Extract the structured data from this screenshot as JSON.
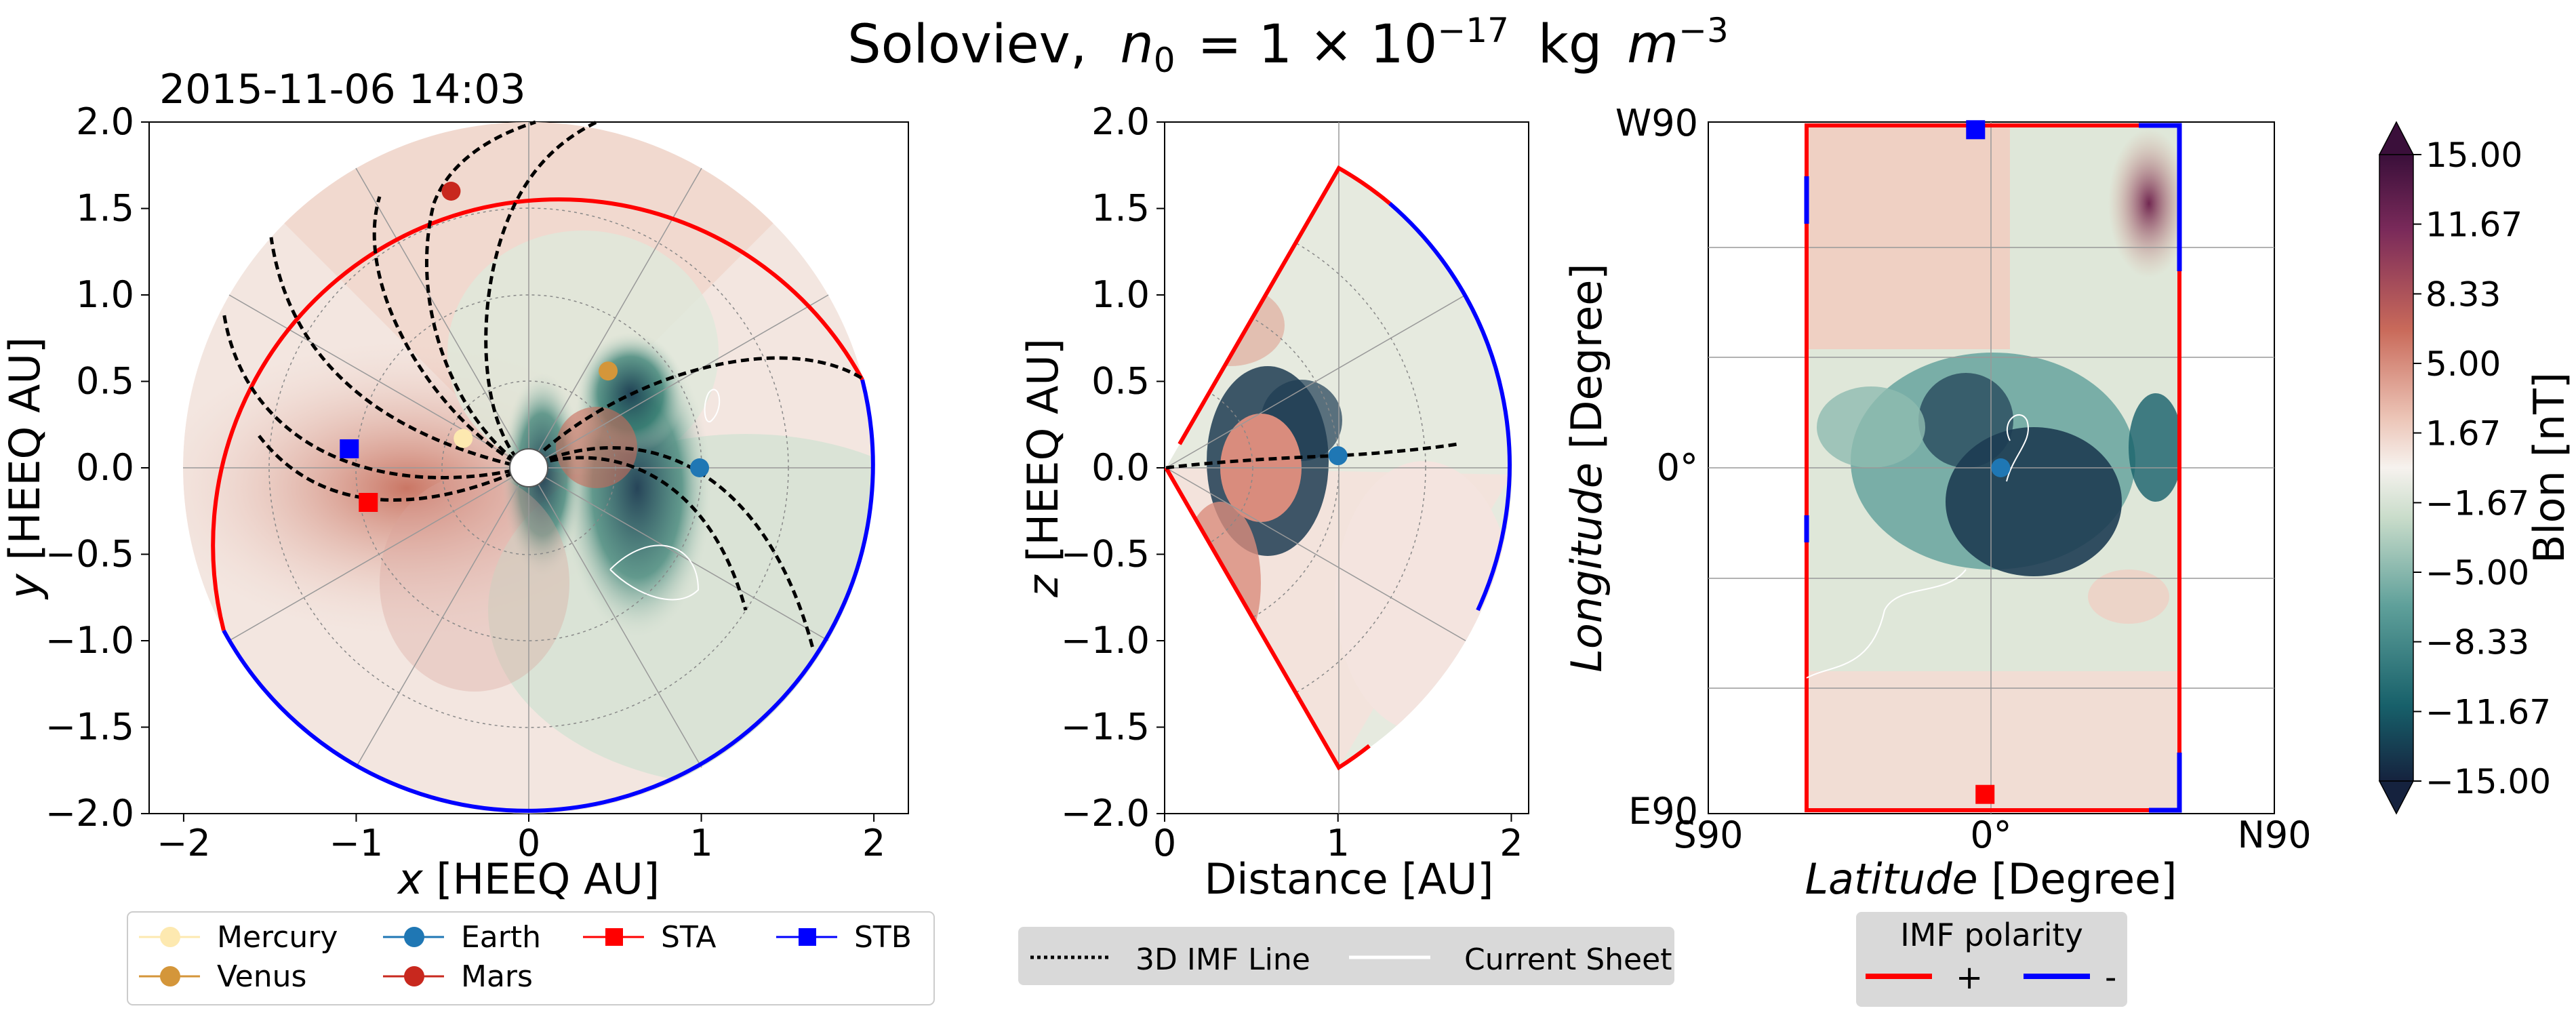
{
  "figure": {
    "title_prefix": "Soloviev,",
    "title_formula": "n",
    "title_sub": "0",
    "title_eq": "= 1 × 10",
    "title_exp": "−17",
    "title_unit": "kg",
    "title_m": "m",
    "title_mexp": "−3",
    "timestamp": "2015-11-06 14:03"
  },
  "colors": {
    "positive_polarity": "#ff0000",
    "negative_polarity": "#0000ff",
    "mercury": "#fde9b0",
    "venus": "#d4963a",
    "earth": "#1f77b4",
    "mars": "#c8281e",
    "sta": "#ff0000",
    "stb": "#0000ff",
    "field_pos": "#6b1d4a",
    "field_neg": "#1d3c52",
    "legend_bg": "#d9d9d9"
  },
  "chart_data": [
    {
      "type": "heatmap",
      "name": "equatorial-view",
      "xlabel_var": "x",
      "xlabel_unit": "[HEEQ AU]",
      "ylabel_var": "y",
      "ylabel_unit": "[HEEQ AU]",
      "xlim": [
        -2.2,
        2.2
      ],
      "ylim": [
        -2.0,
        2.0
      ],
      "xticks": [
        -2,
        -1,
        0,
        1,
        2
      ],
      "xtick_labels": [
        "−2",
        "−1",
        "0",
        "1",
        "2"
      ],
      "yticks": [
        -2.0,
        -1.5,
        -1.0,
        -0.5,
        0.0,
        0.5,
        1.0,
        1.5,
        2.0
      ],
      "ytick_labels": [
        "−2.0",
        "−1.5",
        "−1.0",
        "−0.5",
        "0.0",
        "0.5",
        "1.0",
        "1.5",
        "2.0"
      ],
      "bodies": [
        {
          "name": "Mercury",
          "x": -0.38,
          "y": 0.17,
          "marker": "circle",
          "color": "#fde9b0"
        },
        {
          "name": "Venus",
          "x": 0.46,
          "y": 0.56,
          "marker": "circle",
          "color": "#d4963a"
        },
        {
          "name": "Earth",
          "x": 0.99,
          "y": 0.0,
          "marker": "circle",
          "color": "#1f77b4"
        },
        {
          "name": "Mars",
          "x": -0.45,
          "y": 1.6,
          "marker": "circle",
          "color": "#c8281e"
        },
        {
          "name": "STA",
          "x": -0.93,
          "y": -0.2,
          "marker": "square",
          "color": "#ff0000"
        },
        {
          "name": "STB",
          "x": -1.04,
          "y": 0.11,
          "marker": "square",
          "color": "#0000ff"
        }
      ]
    },
    {
      "type": "heatmap",
      "name": "meridional-view",
      "xlabel": "Distance [AU]",
      "ylabel_var": "z",
      "ylabel_unit": "[HEEQ AU]",
      "xlim": [
        0,
        2.1
      ],
      "ylim": [
        -2.0,
        2.0
      ],
      "xticks": [
        0,
        1,
        2
      ],
      "xtick_labels": [
        "0",
        "1",
        "2"
      ],
      "yticks": [
        -2.0,
        -1.5,
        -1.0,
        -0.5,
        0.0,
        0.5,
        1.0,
        1.5,
        2.0
      ],
      "ytick_labels": [
        "−2.0",
        "−1.5",
        "−1.0",
        "−0.5",
        "0.0",
        "0.5",
        "1.0",
        "1.5",
        "2.0"
      ],
      "wedge_half_angle_deg": 60,
      "bodies": [
        {
          "name": "Earth",
          "x": 1.0,
          "y": 0.07,
          "marker": "circle",
          "color": "#1f77b4"
        }
      ]
    },
    {
      "type": "heatmap",
      "name": "lat-lon-map",
      "xlabel_var": "Latitude",
      "xlabel_unit": "[Degree]",
      "ylabel_var": "Longitude",
      "ylabel_unit": "[Degree]",
      "xlim": [
        -90,
        90
      ],
      "ylim": [
        -90,
        90
      ],
      "xtick_labels": [
        "S90",
        "0°",
        "N90"
      ],
      "ytick_labels": [
        "E90",
        "0°",
        "W90"
      ],
      "bodies": [
        {
          "name": "Earth",
          "x": 3,
          "y": 0,
          "marker": "circle",
          "color": "#1f77b4"
        },
        {
          "name": "STB",
          "x": -5,
          "y": 88,
          "marker": "square",
          "color": "#0000ff"
        },
        {
          "name": "STA",
          "x": -2,
          "y": -85,
          "marker": "square",
          "color": "#ff0000"
        }
      ]
    },
    {
      "type": "colorbar",
      "name": "blon-colorbar",
      "label": "Blon  [nT]",
      "range": [
        -15.0,
        15.0
      ],
      "ticks": [
        15.0,
        11.67,
        8.33,
        5.0,
        1.67,
        -1.67,
        -5.0,
        -8.33,
        -11.67,
        -15.0
      ],
      "tick_labels": [
        "15.00",
        "11.67",
        "8.33",
        "5.00",
        "1.67",
        "−1.67",
        "−5.00",
        "−8.33",
        "−11.67",
        "−15.00"
      ]
    }
  ],
  "legends": {
    "bodies": [
      {
        "label": "Mercury",
        "marker": "circle",
        "color": "#fde9b0"
      },
      {
        "label": "Earth",
        "marker": "circle",
        "color": "#1f77b4"
      },
      {
        "label": "STA",
        "marker": "square",
        "color": "#ff0000"
      },
      {
        "label": "STB",
        "marker": "square",
        "color": "#0000ff"
      },
      {
        "label": "Venus",
        "marker": "circle",
        "color": "#d4963a"
      },
      {
        "label": "Mars",
        "marker": "circle",
        "color": "#c8281e"
      }
    ],
    "lines": [
      {
        "label": "3D IMF Line",
        "style": "dotted"
      },
      {
        "label": "Current Sheet",
        "style": "solid-white"
      }
    ],
    "imf": {
      "title": "IMF polarity",
      "items": [
        {
          "label": "+",
          "color": "#ff0000"
        },
        {
          "label": "-",
          "color": "#0000ff"
        }
      ]
    }
  }
}
